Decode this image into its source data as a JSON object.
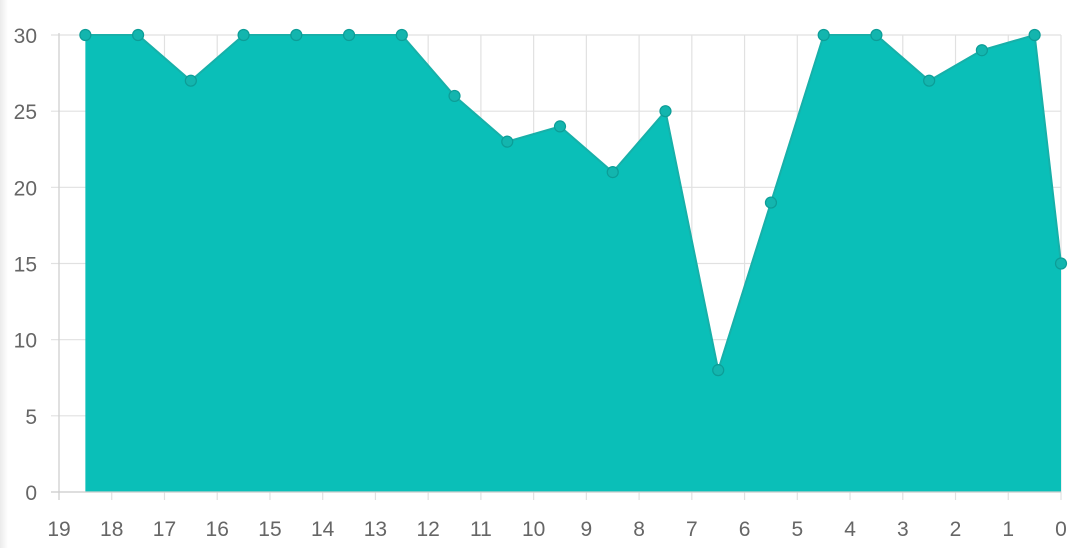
{
  "chart_data": {
    "type": "area",
    "title": "",
    "xlabel": "",
    "ylabel": "",
    "x_ticks": [
      "19",
      "18",
      "17",
      "16",
      "15",
      "14",
      "13",
      "12",
      "11",
      "10",
      "9",
      "8",
      "7",
      "6",
      "5",
      "4",
      "3",
      "2",
      "1",
      "0"
    ],
    "x": [
      18.5,
      17.5,
      16.5,
      15.5,
      14.5,
      13.5,
      12.5,
      11.5,
      10.5,
      9.5,
      8.5,
      7.5,
      6.5,
      5.5,
      4.5,
      3.5,
      2.5,
      1.5,
      0.5,
      0
    ],
    "y": [
      30,
      30,
      27,
      30,
      30,
      30,
      30,
      26,
      23,
      24,
      21,
      25,
      8,
      19,
      30,
      30,
      27,
      29,
      30,
      15
    ],
    "y_ticks": [
      0,
      5,
      10,
      15,
      20,
      25,
      30
    ],
    "xlim": [
      19,
      0
    ],
    "ylim": [
      0,
      30
    ],
    "x_reversed": true,
    "grid": true,
    "legend": "none",
    "colors": {
      "fill": "#0abfb8",
      "line": "#17b0a9",
      "point": "#13b5ae",
      "point_border": "#0c9d97",
      "grid": "#e1e1e1",
      "axis": "#cfcfcf",
      "tick_text": "#666666"
    }
  }
}
